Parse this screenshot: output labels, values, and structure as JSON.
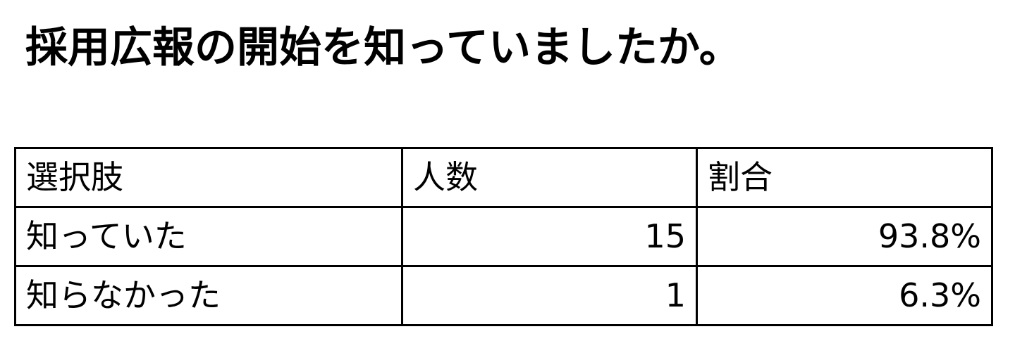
{
  "title": "採用広報の開始を知っていましたか。",
  "table": {
    "headers": [
      "選択肢",
      "人数",
      "割合"
    ],
    "rows": [
      {
        "option": "知っていた",
        "count": "15",
        "ratio": "93.8%"
      },
      {
        "option": "知らなかった",
        "count": "1",
        "ratio": "6.3%"
      }
    ]
  }
}
